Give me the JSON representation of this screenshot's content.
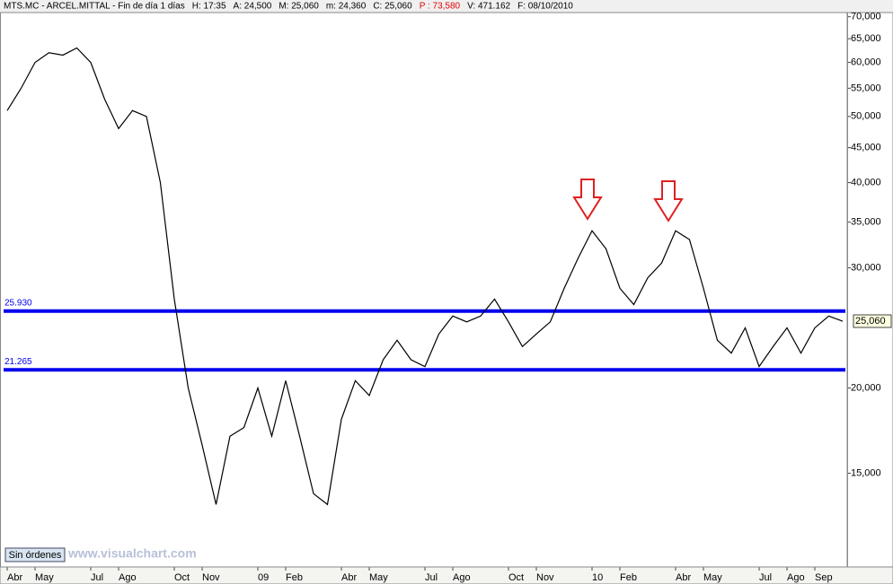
{
  "chart_data": {
    "type": "line",
    "header": [
      "MTS.MC - ARCEL.MITTAL - Fin de día 1 días",
      "H: 17:35",
      "A: 24,500",
      "M: 25,060",
      "m: 24,360",
      "C: 25,060",
      "P : 73,580",
      "V: 471.162",
      "F: 08/10/2010"
    ],
    "categories": [
      "Abr",
      null,
      "May",
      null,
      null,
      null,
      "Jul",
      null,
      "Ago",
      null,
      null,
      null,
      "Oct",
      null,
      "Nov",
      null,
      null,
      null,
      "09",
      null,
      "Feb",
      null,
      null,
      null,
      "Abr",
      null,
      "May",
      null,
      null,
      null,
      "Jul",
      null,
      "Ago",
      null,
      null,
      null,
      "Oct",
      null,
      "Nov",
      null,
      null,
      null,
      "10",
      null,
      "Feb",
      null,
      null,
      null,
      "Abr",
      null,
      "May",
      null,
      null,
      null,
      "Jul",
      null,
      "Ago",
      null,
      "Sep",
      null,
      null
    ],
    "values": [
      51000,
      55000,
      60000,
      62000,
      61500,
      63000,
      60000,
      53000,
      48000,
      51000,
      50000,
      40000,
      27000,
      20000,
      16500,
      13500,
      17000,
      17500,
      20000,
      17000,
      20500,
      17000,
      14000,
      13500,
      18000,
      20500,
      19500,
      22000,
      23500,
      22000,
      21500,
      24000,
      25500,
      25000,
      25500,
      27000,
      25000,
      23000,
      24000,
      25000,
      28000,
      31000,
      34000,
      32000,
      28000,
      26500,
      29000,
      30500,
      34000,
      33000,
      28000,
      23500,
      22500,
      24500,
      21500,
      23000,
      24500,
      22500,
      24500,
      25500,
      25060
    ],
    "color": "#000000",
    "log_scale": true,
    "ylim": [
      11000,
      71000
    ],
    "yticks": [
      {
        "value": 15000,
        "label": "15,000"
      },
      {
        "value": 20000,
        "label": "20,000"
      },
      {
        "value": 30000,
        "label": "30,000"
      },
      {
        "value": 35000,
        "label": "35,000"
      },
      {
        "value": 40000,
        "label": "40,000"
      },
      {
        "value": 45000,
        "label": "45,000"
      },
      {
        "value": 50000,
        "label": "50,000"
      },
      {
        "value": 55000,
        "label": "55,000"
      },
      {
        "value": 60000,
        "label": "60,000"
      },
      {
        "value": 65000,
        "label": "65,000"
      },
      {
        "value": 70000,
        "label": "70,000"
      }
    ],
    "levels": [
      {
        "value": 25930,
        "label": "25.930",
        "color": "#0000ee"
      },
      {
        "value": 21265,
        "label": "21.265",
        "color": "#0000ee"
      }
    ],
    "last_price": {
      "value": 25060,
      "label": "25,060"
    },
    "button": "Sin órdenes",
    "watermark": "www.visualchart.com"
  }
}
